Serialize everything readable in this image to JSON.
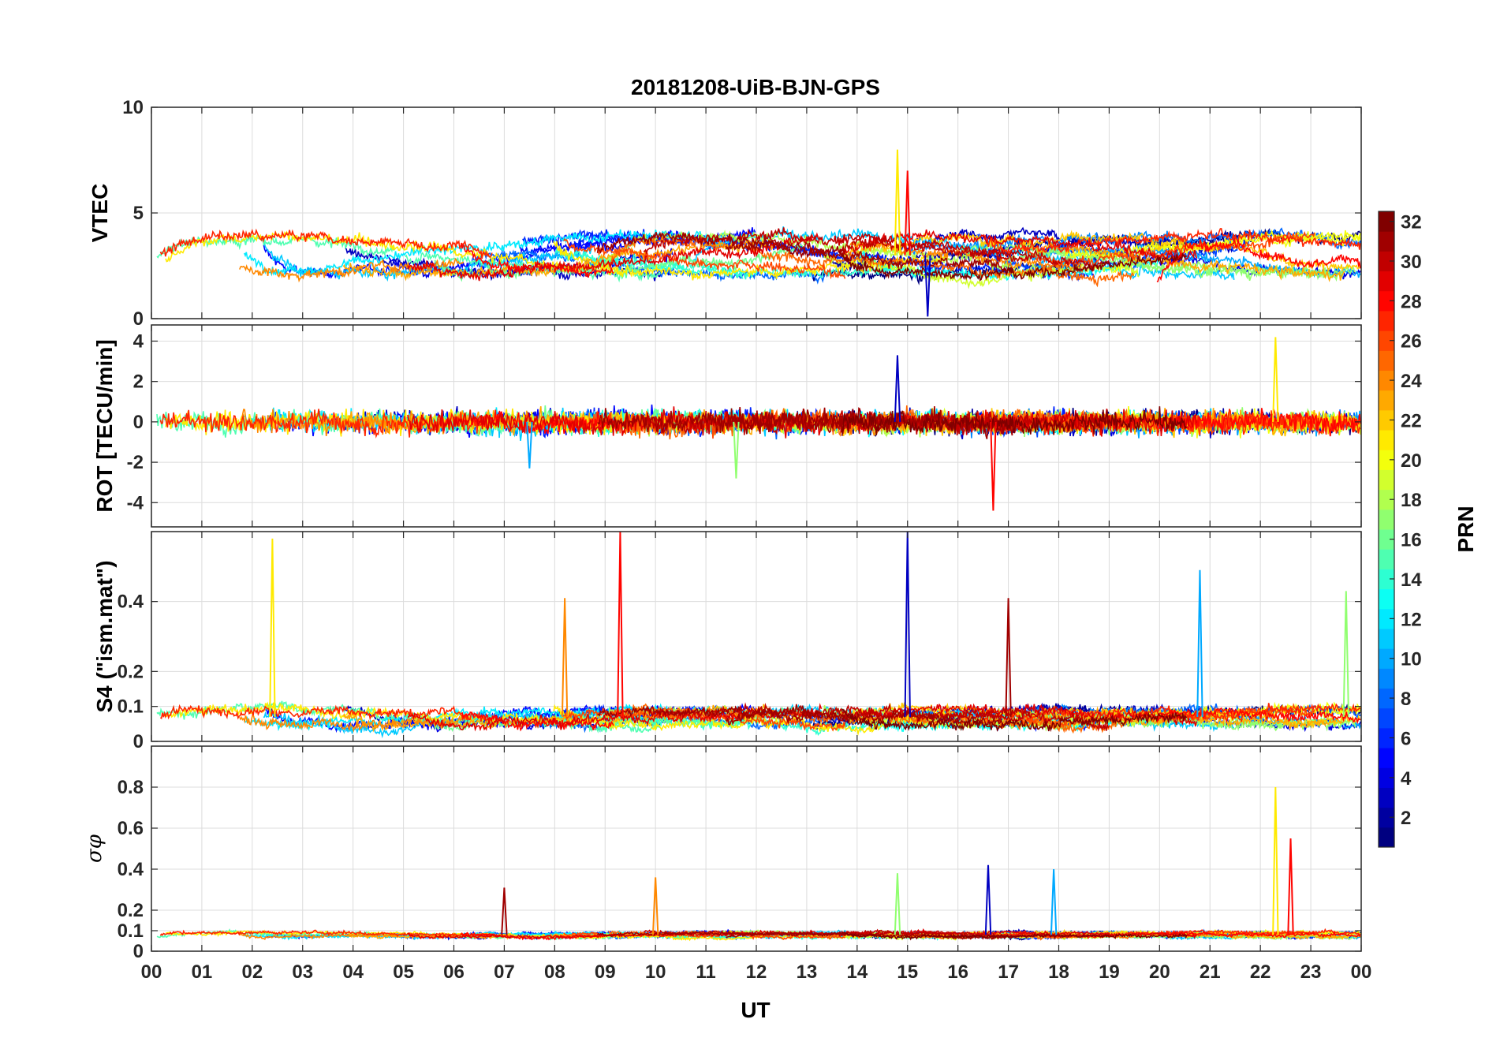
{
  "chart_data": {
    "type": "line",
    "title": "20181208-UiB-BJN-GPS",
    "xlabel": "UT",
    "x_tick_labels": [
      "00",
      "01",
      "02",
      "03",
      "04",
      "05",
      "06",
      "07",
      "08",
      "09",
      "10",
      "11",
      "12",
      "13",
      "14",
      "15",
      "16",
      "17",
      "18",
      "19",
      "20",
      "21",
      "22",
      "23",
      "00"
    ],
    "xlim_hours": [
      0,
      24
    ],
    "grid": true,
    "colorbar": {
      "label": "PRN",
      "range": [
        1,
        32
      ],
      "ticks": [
        "2",
        "4",
        "6",
        "8",
        "10",
        "12",
        "14",
        "16",
        "18",
        "20",
        "22",
        "24",
        "26",
        "28",
        "30",
        "32"
      ],
      "colormap": "jet"
    },
    "panels": [
      {
        "name": "vtec",
        "ylabel": "VTEC",
        "ylim": [
          0,
          10
        ],
        "y_ticks": [
          0,
          5,
          10
        ],
        "y_tick_labels": [
          "0",
          "5",
          "10"
        ],
        "baseline": 3.0,
        "spread": 0.9,
        "noise": 0.35,
        "spikes": [
          {
            "t": 14.8,
            "value": 8.0
          },
          {
            "t": 15.0,
            "value": 7.0
          },
          {
            "t": 15.4,
            "value": 0.1
          }
        ]
      },
      {
        "name": "rot",
        "ylabel": "ROT [TECU/min]",
        "ylim": [
          -5.2,
          4.8
        ],
        "y_ticks": [
          -4,
          -2,
          0,
          2,
          4
        ],
        "y_tick_labels": [
          "-4",
          "-2",
          "0",
          "2",
          "4"
        ],
        "baseline": 0.0,
        "spread": 0.0,
        "noise": 0.35,
        "spikes": [
          {
            "t": 22.3,
            "value": 4.2
          },
          {
            "t": 16.7,
            "value": -4.4
          },
          {
            "t": 14.8,
            "value": 3.3
          },
          {
            "t": 7.5,
            "value": -2.3
          },
          {
            "t": 11.6,
            "value": -2.8
          }
        ]
      },
      {
        "name": "s4",
        "ylabel": "S4 (\"ism.mat\")",
        "ylim": [
          0,
          0.6
        ],
        "y_ticks": [
          0,
          0.1,
          0.2,
          0.4
        ],
        "y_tick_labels": [
          "0",
          "0.1",
          "0.2",
          "0.4"
        ],
        "baseline": 0.07,
        "spread": 0.02,
        "noise": 0.02,
        "spikes": [
          {
            "t": 2.4,
            "value": 0.58
          },
          {
            "t": 9.3,
            "value": 0.6
          },
          {
            "t": 15.0,
            "value": 0.6
          },
          {
            "t": 20.8,
            "value": 0.49
          },
          {
            "t": 23.7,
            "value": 0.43
          },
          {
            "t": 8.2,
            "value": 0.41
          },
          {
            "t": 17.0,
            "value": 0.41
          }
        ]
      },
      {
        "name": "sigma-phi",
        "ylabel": "σφ",
        "ylim": [
          0,
          1.0
        ],
        "y_ticks": [
          0,
          0.1,
          0.2,
          0.4,
          0.6,
          0.8
        ],
        "y_tick_labels": [
          "0",
          "0.1",
          "0.2",
          "0.4",
          "0.6",
          "0.8"
        ],
        "baseline": 0.08,
        "spread": 0.01,
        "noise": 0.012,
        "spikes": [
          {
            "t": 22.3,
            "value": 0.8
          },
          {
            "t": 22.6,
            "value": 0.55
          },
          {
            "t": 16.6,
            "value": 0.42
          },
          {
            "t": 17.9,
            "value": 0.4
          },
          {
            "t": 14.8,
            "value": 0.38
          },
          {
            "t": 10.0,
            "value": 0.36
          },
          {
            "t": 7.0,
            "value": 0.31
          }
        ]
      }
    ],
    "satellite_count": 32
  }
}
